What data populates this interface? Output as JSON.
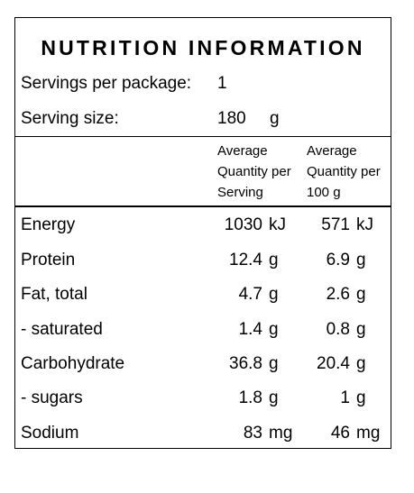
{
  "title": "NUTRITION INFORMATION",
  "servings_label": "Servings per package:",
  "servings_value": "1",
  "serving_size_label": "Serving size:",
  "serving_size_value": "180",
  "serving_size_unit": "g",
  "col_serving_header": "Average\nQuantity per\nServing",
  "col_100g_header": "Average\nQuantity per\n100 g",
  "rows": [
    {
      "name": "Energy",
      "per_serving": "1030",
      "per_serving_unit": "kJ",
      "per_100g": "571",
      "per_100g_unit": "kJ"
    },
    {
      "name": "Protein",
      "per_serving": "12.4",
      "per_serving_unit": "g",
      "per_100g": "6.9",
      "per_100g_unit": "g"
    },
    {
      "name": "Fat, total",
      "per_serving": "4.7",
      "per_serving_unit": "g",
      "per_100g": "2.6",
      "per_100g_unit": "g"
    },
    {
      "name": "- saturated",
      "per_serving": "1.4",
      "per_serving_unit": "g",
      "per_100g": "0.8",
      "per_100g_unit": "g"
    },
    {
      "name": "Carbohydrate",
      "per_serving": "36.8",
      "per_serving_unit": "g",
      "per_100g": "20.4",
      "per_100g_unit": "g"
    },
    {
      "name": "- sugars",
      "per_serving": "1.8",
      "per_serving_unit": "g",
      "per_100g": "1",
      "per_100g_unit": "g"
    },
    {
      "name": "Sodium",
      "per_serving": "83",
      "per_serving_unit": "mg",
      "per_100g": "46",
      "per_100g_unit": "mg"
    }
  ]
}
